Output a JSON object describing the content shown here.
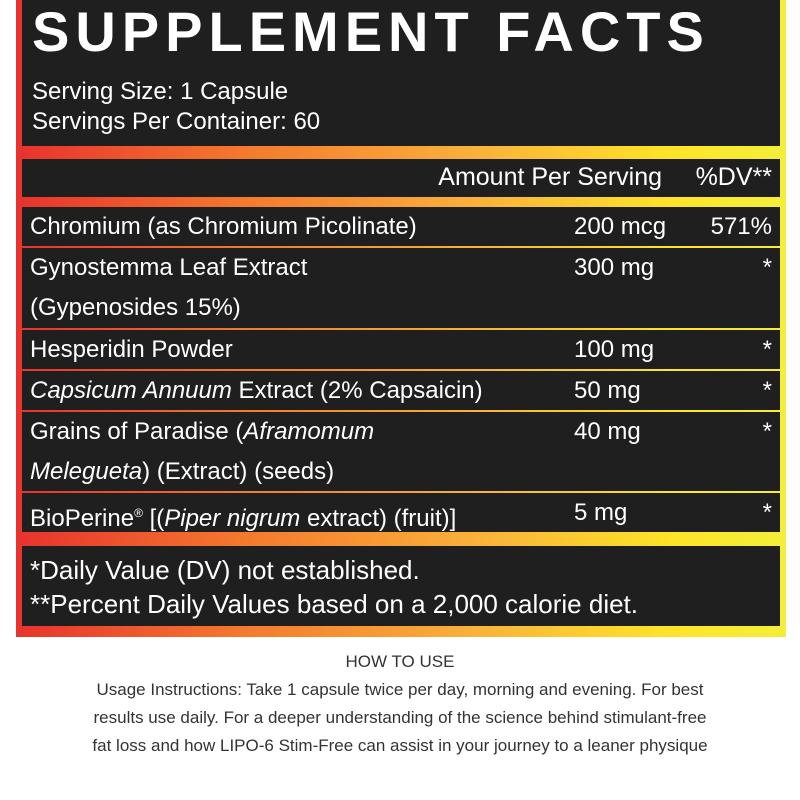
{
  "title": "SUPPLEMENT FACTS",
  "serving_size": "Serving Size: 1 Capsule",
  "servings_per_container": "Servings Per Container: 60",
  "header": {
    "amount": "Amount Per Serving",
    "dv": "%DV**"
  },
  "rows": [
    {
      "name": "Chromium (as Chromium Picolinate)",
      "amount": "200 mcg",
      "dv": "571%"
    },
    {
      "name_line1": "Gynostemma Leaf Extract",
      "name_line2": "(Gypenosides 15%)",
      "amount": "300 mg",
      "dv": "*"
    },
    {
      "name": "Hesperidin Powder",
      "amount": "100 mg",
      "dv": "*"
    },
    {
      "name_italic": "Capsicum Annuum",
      "name_rest": " Extract (2% Capsaicin)",
      "amount": "50 mg",
      "dv": "*"
    },
    {
      "name_pre": "Grains of Paradise  (",
      "name_italic": "Aframomum",
      "name_italic2": "Melegueta",
      "name_rest": ") (Extract) (seeds)",
      "amount": "40 mg",
      "dv": "*"
    },
    {
      "name_pre": "BioPerine",
      "reg": "®",
      "name_pre2": " [(",
      "name_italic": "Piper nigrum",
      "name_rest": " extract) (fruit)]",
      "amount": "5 mg",
      "dv": "*"
    }
  ],
  "footnotes": [
    "*Daily Value (DV) not established.",
    "**Percent Daily Values based on a 2,000 calorie diet."
  ],
  "how_to_use": {
    "heading": "HOW TO USE",
    "lines": [
      "Usage Instructions: Take 1 capsule twice per day, morning and evening. For best",
      "results use daily. For a deeper understanding of the science behind stimulant-free",
      "fat loss and how LIPO-6 Stim-Free can assist in your journey to a leaner physique"
    ]
  },
  "colors": {
    "gradient_start": "#e8322e",
    "gradient_end": "#f4ee3a",
    "panel": "#1f1f1f"
  }
}
